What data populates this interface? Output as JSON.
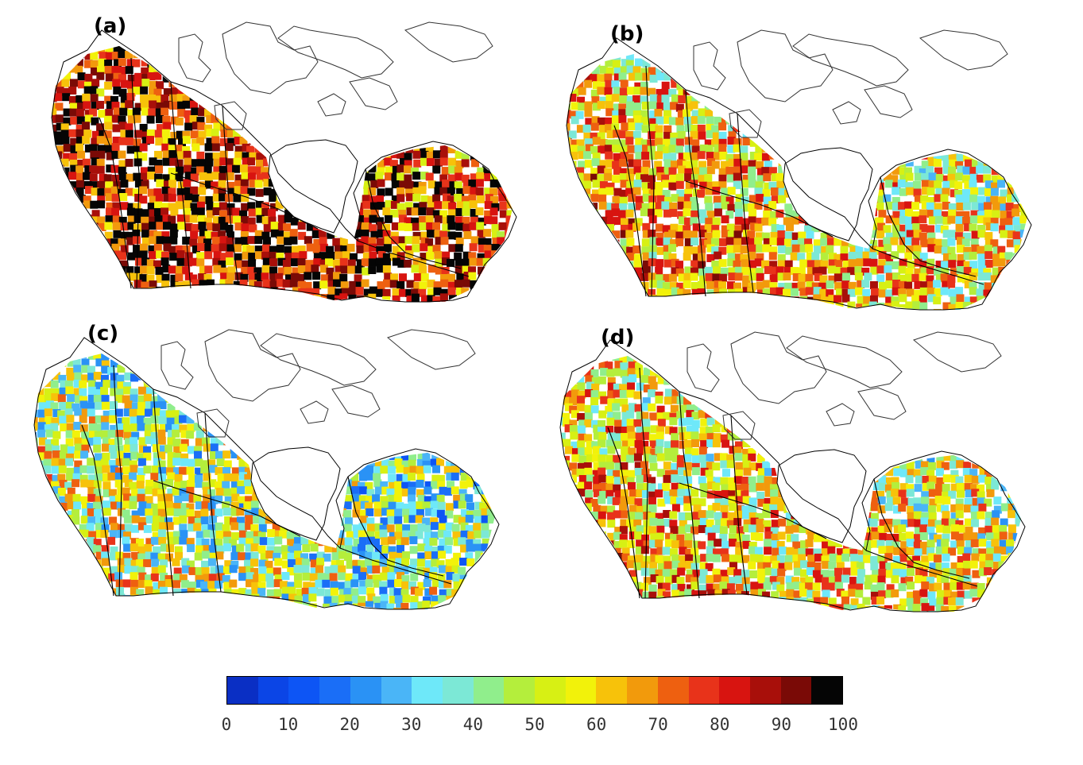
{
  "panels": [
    {
      "id": "a",
      "label": "(a)",
      "seed": 11,
      "warm_bias": 0.9
    },
    {
      "id": "b",
      "label": "(b)",
      "seed": 23,
      "warm_bias": 0.62
    },
    {
      "id": "c",
      "label": "(c)",
      "seed": 37,
      "warm_bias": 0.42
    },
    {
      "id": "d",
      "label": "(d)",
      "seed": 53,
      "warm_bias": 0.58
    }
  ],
  "colorbar": {
    "min": 0,
    "max": 100,
    "tick_labels": [
      "0",
      "10",
      "20",
      "30",
      "40",
      "50",
      "60",
      "70",
      "80",
      "90",
      "100"
    ],
    "colors": [
      "#0a2fc4",
      "#0b45e6",
      "#0d55f5",
      "#1a6ef7",
      "#2a92f5",
      "#4ab5f7",
      "#6ee8f9",
      "#7ce8d6",
      "#90ee8c",
      "#b4ee3c",
      "#d7f014",
      "#f2f20a",
      "#f7c20a",
      "#f29a0c",
      "#ee6010",
      "#e8331a",
      "#d81410",
      "#a80f0a",
      "#7a0a06",
      "#050505"
    ]
  }
}
